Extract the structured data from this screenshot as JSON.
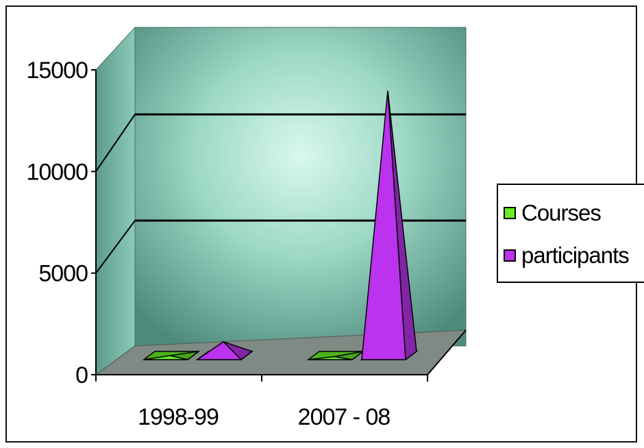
{
  "chart_data": {
    "type": "bar",
    "style": "3d-pyramid",
    "categories": [
      "1998-99",
      "2007 - 08"
    ],
    "series": [
      {
        "name": "Courses",
        "values": [
          200,
          150
        ],
        "color": "#66ee22"
      },
      {
        "name": "participants",
        "values": [
          900,
          13500
        ],
        "color": "#bb33ee"
      }
    ],
    "ylim": [
      0,
      15000
    ],
    "yticks": [
      "0",
      "5000",
      "10000",
      "15000"
    ],
    "grid": true,
    "legend": "right",
    "colors": {
      "wall": "#7fc3b0",
      "floor": "#7f8a84",
      "grid": "#000000"
    }
  }
}
